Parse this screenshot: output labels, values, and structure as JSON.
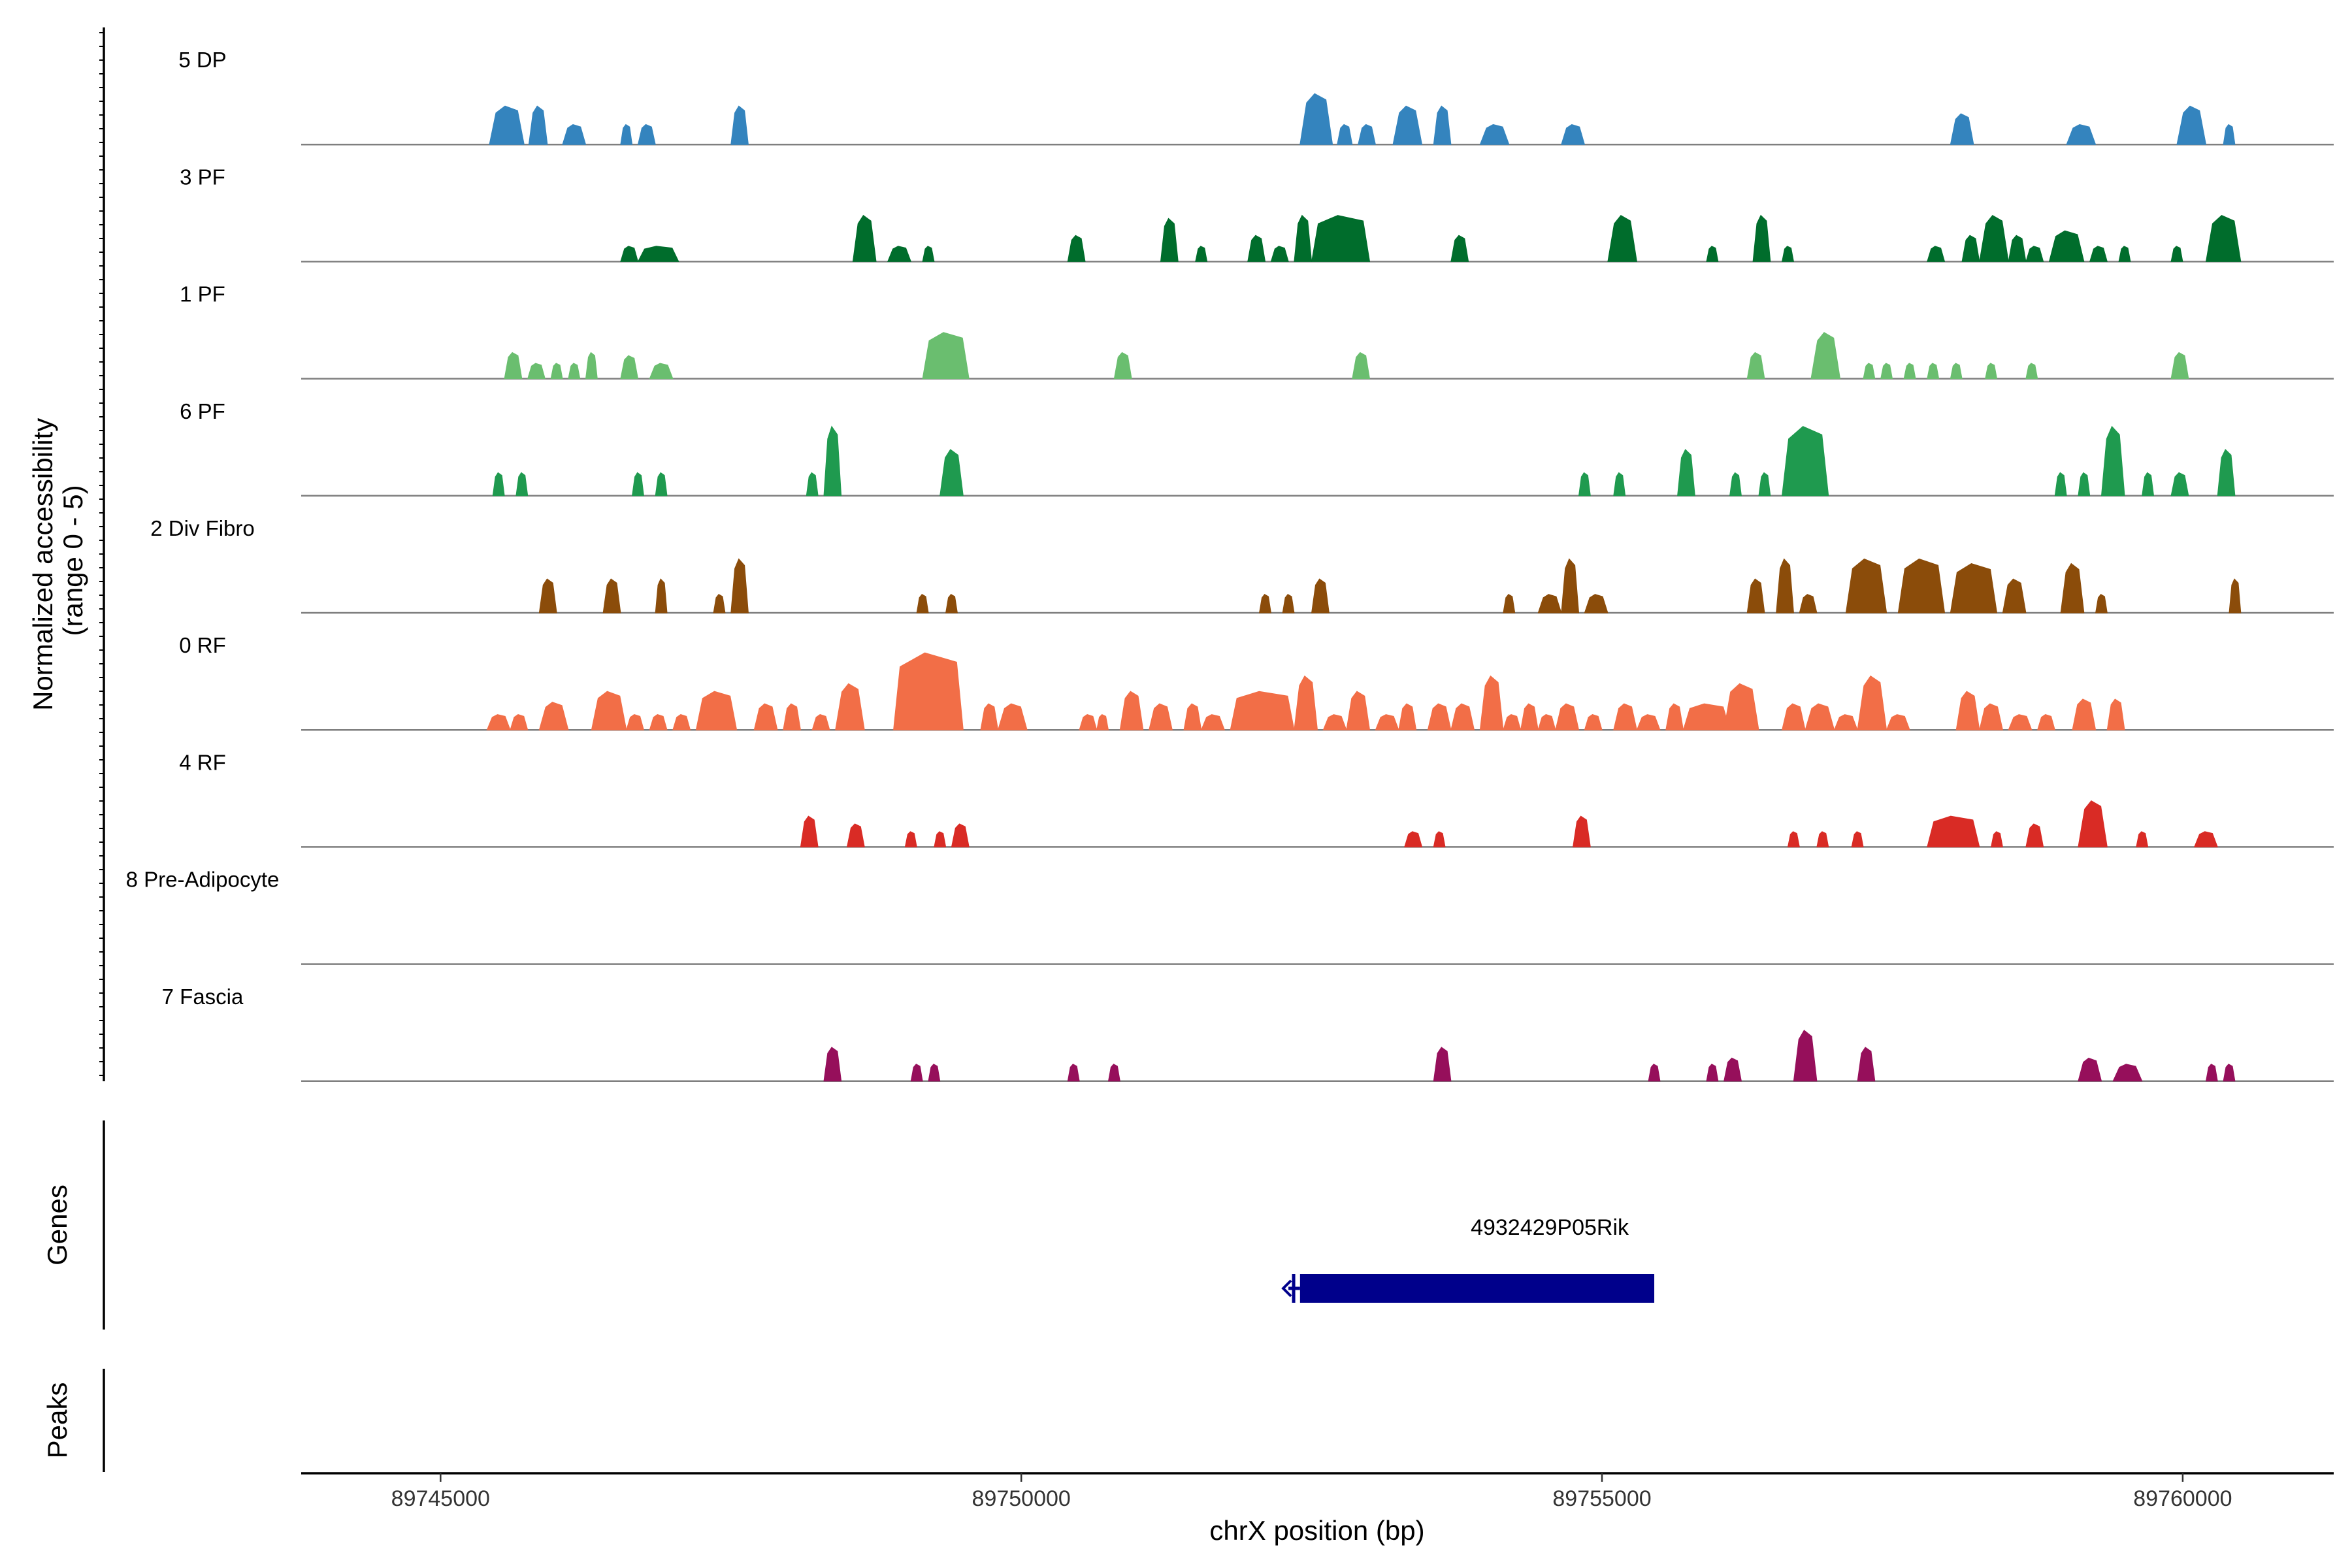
{
  "chart_data": {
    "type": "area",
    "title": "",
    "xlabel": "chrX position (bp)",
    "ylabel": "Normalized accessibility (range 0 - 5)",
    "ylabel_lines": [
      "Normalized accessibility",
      "(range 0 - 5)"
    ],
    "xlim": [
      89743800,
      89761300
    ],
    "x_ticks": [
      89745000,
      89750000,
      89755000,
      89760000
    ],
    "x_tick_labels": [
      "89745000",
      "89750000",
      "89755000",
      "89760000"
    ],
    "ylim": [
      0,
      5
    ],
    "series": [
      {
        "name": "5 DP",
        "color": "#3484BE",
        "peaks": [
          [
            89745420,
            89745720,
            2.5
          ],
          [
            89745760,
            89745920,
            2.5
          ],
          [
            89746050,
            89746250,
            1.3
          ],
          [
            89746550,
            89746650,
            1.3
          ],
          [
            89746700,
            89746850,
            1.3
          ],
          [
            89747500,
            89747650,
            2.5
          ],
          [
            89752400,
            89752680,
            3.3
          ],
          [
            89752720,
            89752850,
            1.3
          ],
          [
            89752900,
            89753050,
            1.3
          ],
          [
            89753200,
            89753450,
            2.5
          ],
          [
            89753550,
            89753700,
            2.5
          ],
          [
            89753950,
            89754200,
            1.3
          ],
          [
            89754650,
            89754850,
            1.3
          ],
          [
            89758000,
            89758200,
            2.0
          ],
          [
            89759000,
            89759250,
            1.3
          ],
          [
            89759950,
            89760200,
            2.5
          ],
          [
            89760350,
            89760450,
            1.3
          ]
        ]
      },
      {
        "name": "3 PF",
        "color": "#006D2C",
        "peaks": [
          [
            89746550,
            89746700,
            1.0
          ],
          [
            89746700,
            89747050,
            1.0
          ],
          [
            89748550,
            89748750,
            3.0
          ],
          [
            89748850,
            89749050,
            1.0
          ],
          [
            89749150,
            89749250,
            1.0
          ],
          [
            89750400,
            89750550,
            1.7
          ],
          [
            89751200,
            89751350,
            2.8
          ],
          [
            89751500,
            89751600,
            1.0
          ],
          [
            89751950,
            89752100,
            1.7
          ],
          [
            89752150,
            89752300,
            1.0
          ],
          [
            89752350,
            89752500,
            3.0
          ],
          [
            89752500,
            89753000,
            3.0
          ],
          [
            89753700,
            89753850,
            1.7
          ],
          [
            89755050,
            89755300,
            3.0
          ],
          [
            89755900,
            89756000,
            1.0
          ],
          [
            89756300,
            89756450,
            3.0
          ],
          [
            89756550,
            89756650,
            1.0
          ],
          [
            89757800,
            89757950,
            1.0
          ],
          [
            89758100,
            89758250,
            1.7
          ],
          [
            89758250,
            89758500,
            3.0
          ],
          [
            89758500,
            89758650,
            1.7
          ],
          [
            89758650,
            89758800,
            1.0
          ],
          [
            89758850,
            89759150,
            2.0
          ],
          [
            89759200,
            89759350,
            1.0
          ],
          [
            89759450,
            89759550,
            1.0
          ],
          [
            89759900,
            89760000,
            1.0
          ],
          [
            89760200,
            89760500,
            3.0
          ]
        ]
      },
      {
        "name": "1 PF",
        "color": "#6ABE6F",
        "peaks": [
          [
            89745550,
            89745700,
            1.7
          ],
          [
            89745750,
            89745900,
            1.0
          ],
          [
            89745950,
            89746050,
            1.0
          ],
          [
            89746100,
            89746200,
            1.0
          ],
          [
            89746250,
            89746350,
            1.7
          ],
          [
            89746550,
            89746700,
            1.5
          ],
          [
            89746800,
            89747000,
            1.0
          ],
          [
            89749150,
            89749550,
            3.0
          ],
          [
            89750800,
            89750950,
            1.7
          ],
          [
            89752850,
            89753000,
            1.7
          ],
          [
            89756250,
            89756400,
            1.7
          ],
          [
            89756800,
            89757050,
            3.0
          ],
          [
            89757250,
            89757350,
            1.0
          ],
          [
            89757400,
            89757500,
            1.0
          ],
          [
            89757600,
            89757700,
            1.0
          ],
          [
            89757800,
            89757900,
            1.0
          ],
          [
            89758000,
            89758100,
            1.0
          ],
          [
            89758300,
            89758400,
            1.0
          ],
          [
            89758650,
            89758750,
            1.0
          ],
          [
            89759900,
            89760050,
            1.7
          ]
        ]
      },
      {
        "name": "6 PF",
        "color": "#1F9A4F",
        "peaks": [
          [
            89745450,
            89745550,
            1.5
          ],
          [
            89745650,
            89745750,
            1.5
          ],
          [
            89746650,
            89746750,
            1.5
          ],
          [
            89746850,
            89746950,
            1.5
          ],
          [
            89748150,
            89748250,
            1.5
          ],
          [
            89748300,
            89748450,
            4.5
          ],
          [
            89749300,
            89749500,
            3.0
          ],
          [
            89754800,
            89754900,
            1.5
          ],
          [
            89755100,
            89755200,
            1.5
          ],
          [
            89755650,
            89755800,
            3.0
          ],
          [
            89756100,
            89756200,
            1.5
          ],
          [
            89756350,
            89756450,
            1.5
          ],
          [
            89756550,
            89756950,
            4.5
          ],
          [
            89759900,
            89760050,
            1.5
          ],
          [
            89758900,
            89759000,
            1.5
          ],
          [
            89759100,
            89759200,
            1.5
          ],
          [
            89759300,
            89759500,
            4.5
          ],
          [
            89759650,
            89759750,
            1.5
          ],
          [
            89760300,
            89760450,
            3.0
          ]
        ]
      },
      {
        "name": "2 Div Fibro",
        "color": "#8B4C0A",
        "peaks": [
          [
            89745850,
            89746000,
            2.2
          ],
          [
            89746400,
            89746550,
            2.2
          ],
          [
            89746850,
            89746950,
            2.2
          ],
          [
            89747350,
            89747450,
            1.2
          ],
          [
            89747500,
            89747650,
            3.5
          ],
          [
            89749100,
            89749200,
            1.2
          ],
          [
            89749350,
            89749450,
            1.2
          ],
          [
            89752050,
            89752150,
            1.2
          ],
          [
            89752250,
            89752350,
            1.2
          ],
          [
            89752500,
            89752650,
            2.2
          ],
          [
            89754150,
            89754250,
            1.2
          ],
          [
            89754450,
            89754650,
            1.2
          ],
          [
            89754650,
            89754800,
            3.5
          ],
          [
            89754850,
            89755050,
            1.2
          ],
          [
            89756250,
            89756400,
            2.2
          ],
          [
            89756500,
            89756650,
            3.5
          ],
          [
            89756700,
            89756850,
            1.2
          ],
          [
            89757100,
            89757450,
            3.5
          ],
          [
            89757550,
            89757950,
            3.5
          ],
          [
            89758000,
            89758400,
            3.2
          ],
          [
            89758450,
            89758650,
            2.2
          ],
          [
            89758950,
            89759150,
            3.2
          ],
          [
            89759250,
            89759350,
            1.2
          ],
          [
            89760400,
            89760500,
            2.2
          ]
        ]
      },
      {
        "name": "0 RF",
        "color": "#F26E47",
        "peaks": [
          [
            89745400,
            89745600,
            1.0
          ],
          [
            89745600,
            89745750,
            1.0
          ],
          [
            89745850,
            89746100,
            1.8
          ],
          [
            89746300,
            89746600,
            2.5
          ],
          [
            89746600,
            89746750,
            1.0
          ],
          [
            89746800,
            89746950,
            1.0
          ],
          [
            89747000,
            89747150,
            1.0
          ],
          [
            89747200,
            89747550,
            2.5
          ],
          [
            89747700,
            89747900,
            1.7
          ],
          [
            89747950,
            89748100,
            1.7
          ],
          [
            89748200,
            89748350,
            1.0
          ],
          [
            89748400,
            89748650,
            3.0
          ],
          [
            89748900,
            89749500,
            5.0
          ],
          [
            89749650,
            89749800,
            1.7
          ],
          [
            89749800,
            89750050,
            1.7
          ],
          [
            89750500,
            89750650,
            1.0
          ],
          [
            89750650,
            89750750,
            1.0
          ],
          [
            89750850,
            89751050,
            2.5
          ],
          [
            89751100,
            89751300,
            1.7
          ],
          [
            89751400,
            89751550,
            1.7
          ],
          [
            89751550,
            89751750,
            1.0
          ],
          [
            89751800,
            89752350,
            2.5
          ],
          [
            89752350,
            89752550,
            3.5
          ],
          [
            89752600,
            89752800,
            1.0
          ],
          [
            89752800,
            89753000,
            2.5
          ],
          [
            89753050,
            89753250,
            1.0
          ],
          [
            89753250,
            89753400,
            1.7
          ],
          [
            89753500,
            89753700,
            1.7
          ],
          [
            89753700,
            89753900,
            1.7
          ],
          [
            89753950,
            89754150,
            3.5
          ],
          [
            89754150,
            89754300,
            1.0
          ],
          [
            89754300,
            89754450,
            1.7
          ],
          [
            89754450,
            89754600,
            1.0
          ],
          [
            89754600,
            89754800,
            1.7
          ],
          [
            89754850,
            89755000,
            1.0
          ],
          [
            89755100,
            89755300,
            1.7
          ],
          [
            89755300,
            89755500,
            1.0
          ],
          [
            89755550,
            89755700,
            1.7
          ],
          [
            89755700,
            89756100,
            1.7
          ],
          [
            89756050,
            89756350,
            3.0
          ],
          [
            89756550,
            89756750,
            1.7
          ],
          [
            89756750,
            89757000,
            1.7
          ],
          [
            89757000,
            89757200,
            1.0
          ],
          [
            89757200,
            89757450,
            3.5
          ],
          [
            89757450,
            89757650,
            1.0
          ],
          [
            89758050,
            89758250,
            2.5
          ],
          [
            89758250,
            89758450,
            1.7
          ],
          [
            89758500,
            89758700,
            1.0
          ],
          [
            89758750,
            89758900,
            1.0
          ],
          [
            89759050,
            89759250,
            2.0
          ],
          [
            89759350,
            89759500,
            2.0
          ]
        ]
      },
      {
        "name": "4 RF",
        "color": "#D92B25",
        "peaks": [
          [
            89748100,
            89748250,
            2.0
          ],
          [
            89748500,
            89748650,
            1.5
          ],
          [
            89749000,
            89749100,
            1.0
          ],
          [
            89749250,
            89749350,
            1.0
          ],
          [
            89749400,
            89749550,
            1.5
          ],
          [
            89753300,
            89753450,
            1.0
          ],
          [
            89753550,
            89753650,
            1.0
          ],
          [
            89754750,
            89754900,
            2.0
          ],
          [
            89756600,
            89756700,
            1.0
          ],
          [
            89756850,
            89756950,
            1.0
          ],
          [
            89757150,
            89757250,
            1.0
          ],
          [
            89757800,
            89758250,
            2.0
          ],
          [
            89758350,
            89758450,
            1.0
          ],
          [
            89758650,
            89758800,
            1.5
          ],
          [
            89759100,
            89759350,
            3.0
          ],
          [
            89759600,
            89759700,
            1.0
          ],
          [
            89760100,
            89760300,
            1.0
          ]
        ]
      },
      {
        "name": "8 Pre-Adipocyte",
        "color": "#F9D35A",
        "peaks": []
      },
      {
        "name": "7 Fascia",
        "color": "#960F5B",
        "peaks": [
          [
            89748300,
            89748450,
            2.2
          ],
          [
            89749050,
            89749150,
            1.1
          ],
          [
            89749200,
            89749300,
            1.1
          ],
          [
            89750400,
            89750500,
            1.1
          ],
          [
            89750750,
            89750850,
            1.1
          ],
          [
            89753550,
            89753700,
            2.2
          ],
          [
            89755400,
            89755500,
            1.1
          ],
          [
            89755900,
            89756000,
            1.1
          ],
          [
            89756050,
            89756200,
            1.5
          ],
          [
            89756650,
            89756850,
            3.3
          ],
          [
            89757200,
            89757350,
            2.2
          ],
          [
            89759100,
            89759300,
            1.5
          ],
          [
            89759400,
            89759650,
            1.1
          ],
          [
            89760200,
            89760300,
            1.1
          ],
          [
            89760350,
            89760450,
            1.1
          ]
        ]
      }
    ],
    "genes": [
      {
        "name": "4932429P05Rik",
        "strand": "-",
        "start": 89752300,
        "end": 89755450,
        "exon_start": 89752400,
        "exon_end": 89755450,
        "color": "#00008B"
      }
    ],
    "panels": {
      "genes_label": "Genes",
      "peaks_label": "Peaks",
      "peaks": []
    }
  }
}
